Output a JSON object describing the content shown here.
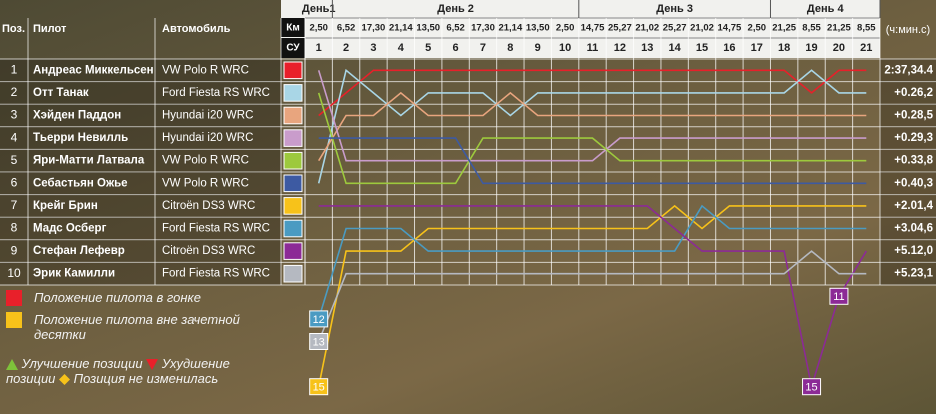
{
  "header": {
    "pos": "Поз.",
    "pilot": "Пилот",
    "car": "Автомобиль",
    "km": "Км",
    "stage": "СУ",
    "time_unit": "(ч:мин.с)"
  },
  "days": [
    "День1",
    "День 2",
    "День 3",
    "День 4"
  ],
  "table": {
    "rows": [
      [
        "1",
        "Андреас Миккельсен",
        "VW Polo R WRC",
        "2:37,34.4"
      ],
      [
        "2",
        "Отт Танак",
        "Ford Fiesta RS WRC",
        "+0.26,2"
      ],
      [
        "3",
        "Хэйден Паддон",
        "Hyundai i20 WRC",
        "+0.28,5"
      ],
      [
        "4",
        "Тьерри Невилль",
        "Hyundai i20 WRC",
        "+0.29,3"
      ],
      [
        "5",
        "Яри-Матти Латвала",
        "VW Polo R WRC",
        "+0.33,8"
      ],
      [
        "6",
        "Себастьян Ожье",
        "VW Polo R WRC",
        "+0.40,3"
      ],
      [
        "7",
        "Крейг Брин",
        "Citroën DS3 WRC",
        "+2.01,4"
      ],
      [
        "8",
        "Мадс Осберг",
        "Ford Fiesta RS WRC",
        "+3.04,6"
      ],
      [
        "9",
        "Стефан Лефевр",
        "Citroën DS3 WRC",
        "+5.12,0"
      ],
      [
        "10",
        "Эрик Камилли",
        "Ford Fiesta RS WRC",
        "+5.23,1"
      ]
    ]
  },
  "chart_data": {
    "type": "bump",
    "categories": [
      "1",
      "2",
      "3",
      "4",
      "5",
      "6",
      "7",
      "8",
      "9",
      "10",
      "11",
      "12",
      "13",
      "14",
      "15",
      "16",
      "17",
      "18",
      "19",
      "20",
      "21"
    ],
    "km": [
      "2,50",
      "6,52",
      "17,30",
      "21,14",
      "13,50",
      "6,52",
      "17,30",
      "21,14",
      "13,50",
      "2,50",
      "14,75",
      "25,27",
      "21,02",
      "25,27",
      "21,02",
      "14,75",
      "2,50",
      "21,25",
      "8,55",
      "21,25",
      "8,55"
    ],
    "series": [
      {
        "color": "#e8202a",
        "values": [
          3,
          2,
          1,
          1,
          1,
          1,
          1,
          1,
          1,
          1,
          1,
          1,
          1,
          1,
          1,
          1,
          1,
          1,
          2,
          1,
          1
        ]
      },
      {
        "color": "#a9d6e6",
        "values": [
          6,
          1,
          2,
          3,
          2,
          2,
          2,
          3,
          2,
          2,
          2,
          2,
          2,
          2,
          2,
          2,
          2,
          2,
          1,
          2,
          2
        ]
      },
      {
        "color": "#e8a57e",
        "values": [
          5,
          3,
          3,
          2,
          3,
          3,
          3,
          2,
          3,
          3,
          3,
          3,
          3,
          3,
          3,
          3,
          3,
          3,
          3,
          3,
          3
        ]
      },
      {
        "color": "#c99ccb",
        "values": [
          1,
          5,
          5,
          5,
          5,
          5,
          5,
          5,
          5,
          5,
          5,
          4,
          4,
          4,
          4,
          4,
          4,
          4,
          4,
          4,
          4
        ]
      },
      {
        "color": "#9dc93d",
        "values": [
          2,
          6,
          6,
          6,
          6,
          6,
          4,
          4,
          4,
          4,
          4,
          5,
          5,
          5,
          5,
          5,
          5,
          5,
          5,
          5,
          5
        ]
      },
      {
        "color": "#3d5aa2",
        "values": [
          4,
          4,
          4,
          4,
          4,
          4,
          6,
          6,
          6,
          6,
          6,
          6,
          6,
          6,
          6,
          6,
          6,
          6,
          6,
          6,
          6
        ]
      },
      {
        "color": "#f7c21a",
        "values": [
          15,
          9,
          9,
          9,
          8,
          8,
          8,
          8,
          8,
          8,
          8,
          8,
          8,
          7,
          8,
          7,
          7,
          7,
          7,
          7,
          7
        ]
      },
      {
        "color": "#4a9bc2",
        "values": [
          12,
          8,
          8,
          8,
          9,
          9,
          9,
          9,
          9,
          9,
          9,
          9,
          9,
          9,
          7,
          8,
          8,
          8,
          8,
          8,
          8
        ]
      },
      {
        "color": "#8c2a96",
        "values": [
          7,
          7,
          7,
          7,
          7,
          7,
          7,
          7,
          7,
          7,
          7,
          7,
          7,
          8,
          9,
          9,
          9,
          9,
          15,
          11,
          9
        ]
      },
      {
        "color": "#b5b9c1",
        "values": [
          13,
          10,
          10,
          10,
          10,
          10,
          10,
          10,
          10,
          10,
          10,
          10,
          10,
          10,
          10,
          10,
          10,
          10,
          9,
          10,
          10
        ]
      }
    ]
  },
  "legend": {
    "in_race": "Положение пилота в гонке",
    "outside_top10": "Положение пилота вне зачетной десятки",
    "improved": "Улучшение позиции",
    "worsened": "Ухудшение позиции",
    "unchanged": "Позиция не изменилась"
  }
}
